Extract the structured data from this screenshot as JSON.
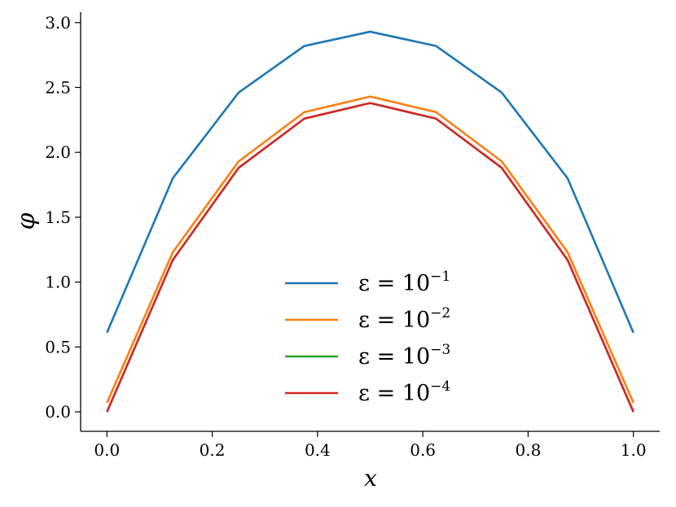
{
  "chart_data": {
    "type": "line",
    "xlabel": "x",
    "ylabel": "φ",
    "xlim": [
      -0.05,
      1.05
    ],
    "ylim": [
      -0.15,
      3.08
    ],
    "xticks": [
      "0.0",
      "0.2",
      "0.4",
      "0.6",
      "0.8",
      "1.0"
    ],
    "yticks": [
      "0.0",
      "0.5",
      "1.0",
      "1.5",
      "2.0",
      "2.5",
      "3.0"
    ],
    "grid": false,
    "legend_position": "lower-center",
    "x": [
      0.0,
      0.125,
      0.25,
      0.375,
      0.5,
      0.625,
      0.75,
      0.875,
      1.0
    ],
    "series": [
      {
        "name": "ε = 10",
        "exp": "−1",
        "color": "#1f77b4",
        "values": [
          0.61,
          1.8,
          2.46,
          2.82,
          2.93,
          2.82,
          2.46,
          1.8,
          0.61
        ]
      },
      {
        "name": "ε = 10",
        "exp": "−2",
        "color": "#ff7f0e",
        "values": [
          0.07,
          1.23,
          1.93,
          2.31,
          2.43,
          2.31,
          1.93,
          1.23,
          0.07
        ]
      },
      {
        "name": "ε = 10",
        "exp": "−3",
        "color": "#2ca02c",
        "values": [
          0.0,
          1.17,
          1.88,
          2.26,
          2.38,
          2.26,
          1.88,
          1.17,
          0.0
        ]
      },
      {
        "name": "ε = 10",
        "exp": "−4",
        "color": "#d62728",
        "values": [
          0.0,
          1.17,
          1.88,
          2.26,
          2.38,
          2.26,
          1.88,
          1.17,
          0.0
        ]
      }
    ]
  }
}
